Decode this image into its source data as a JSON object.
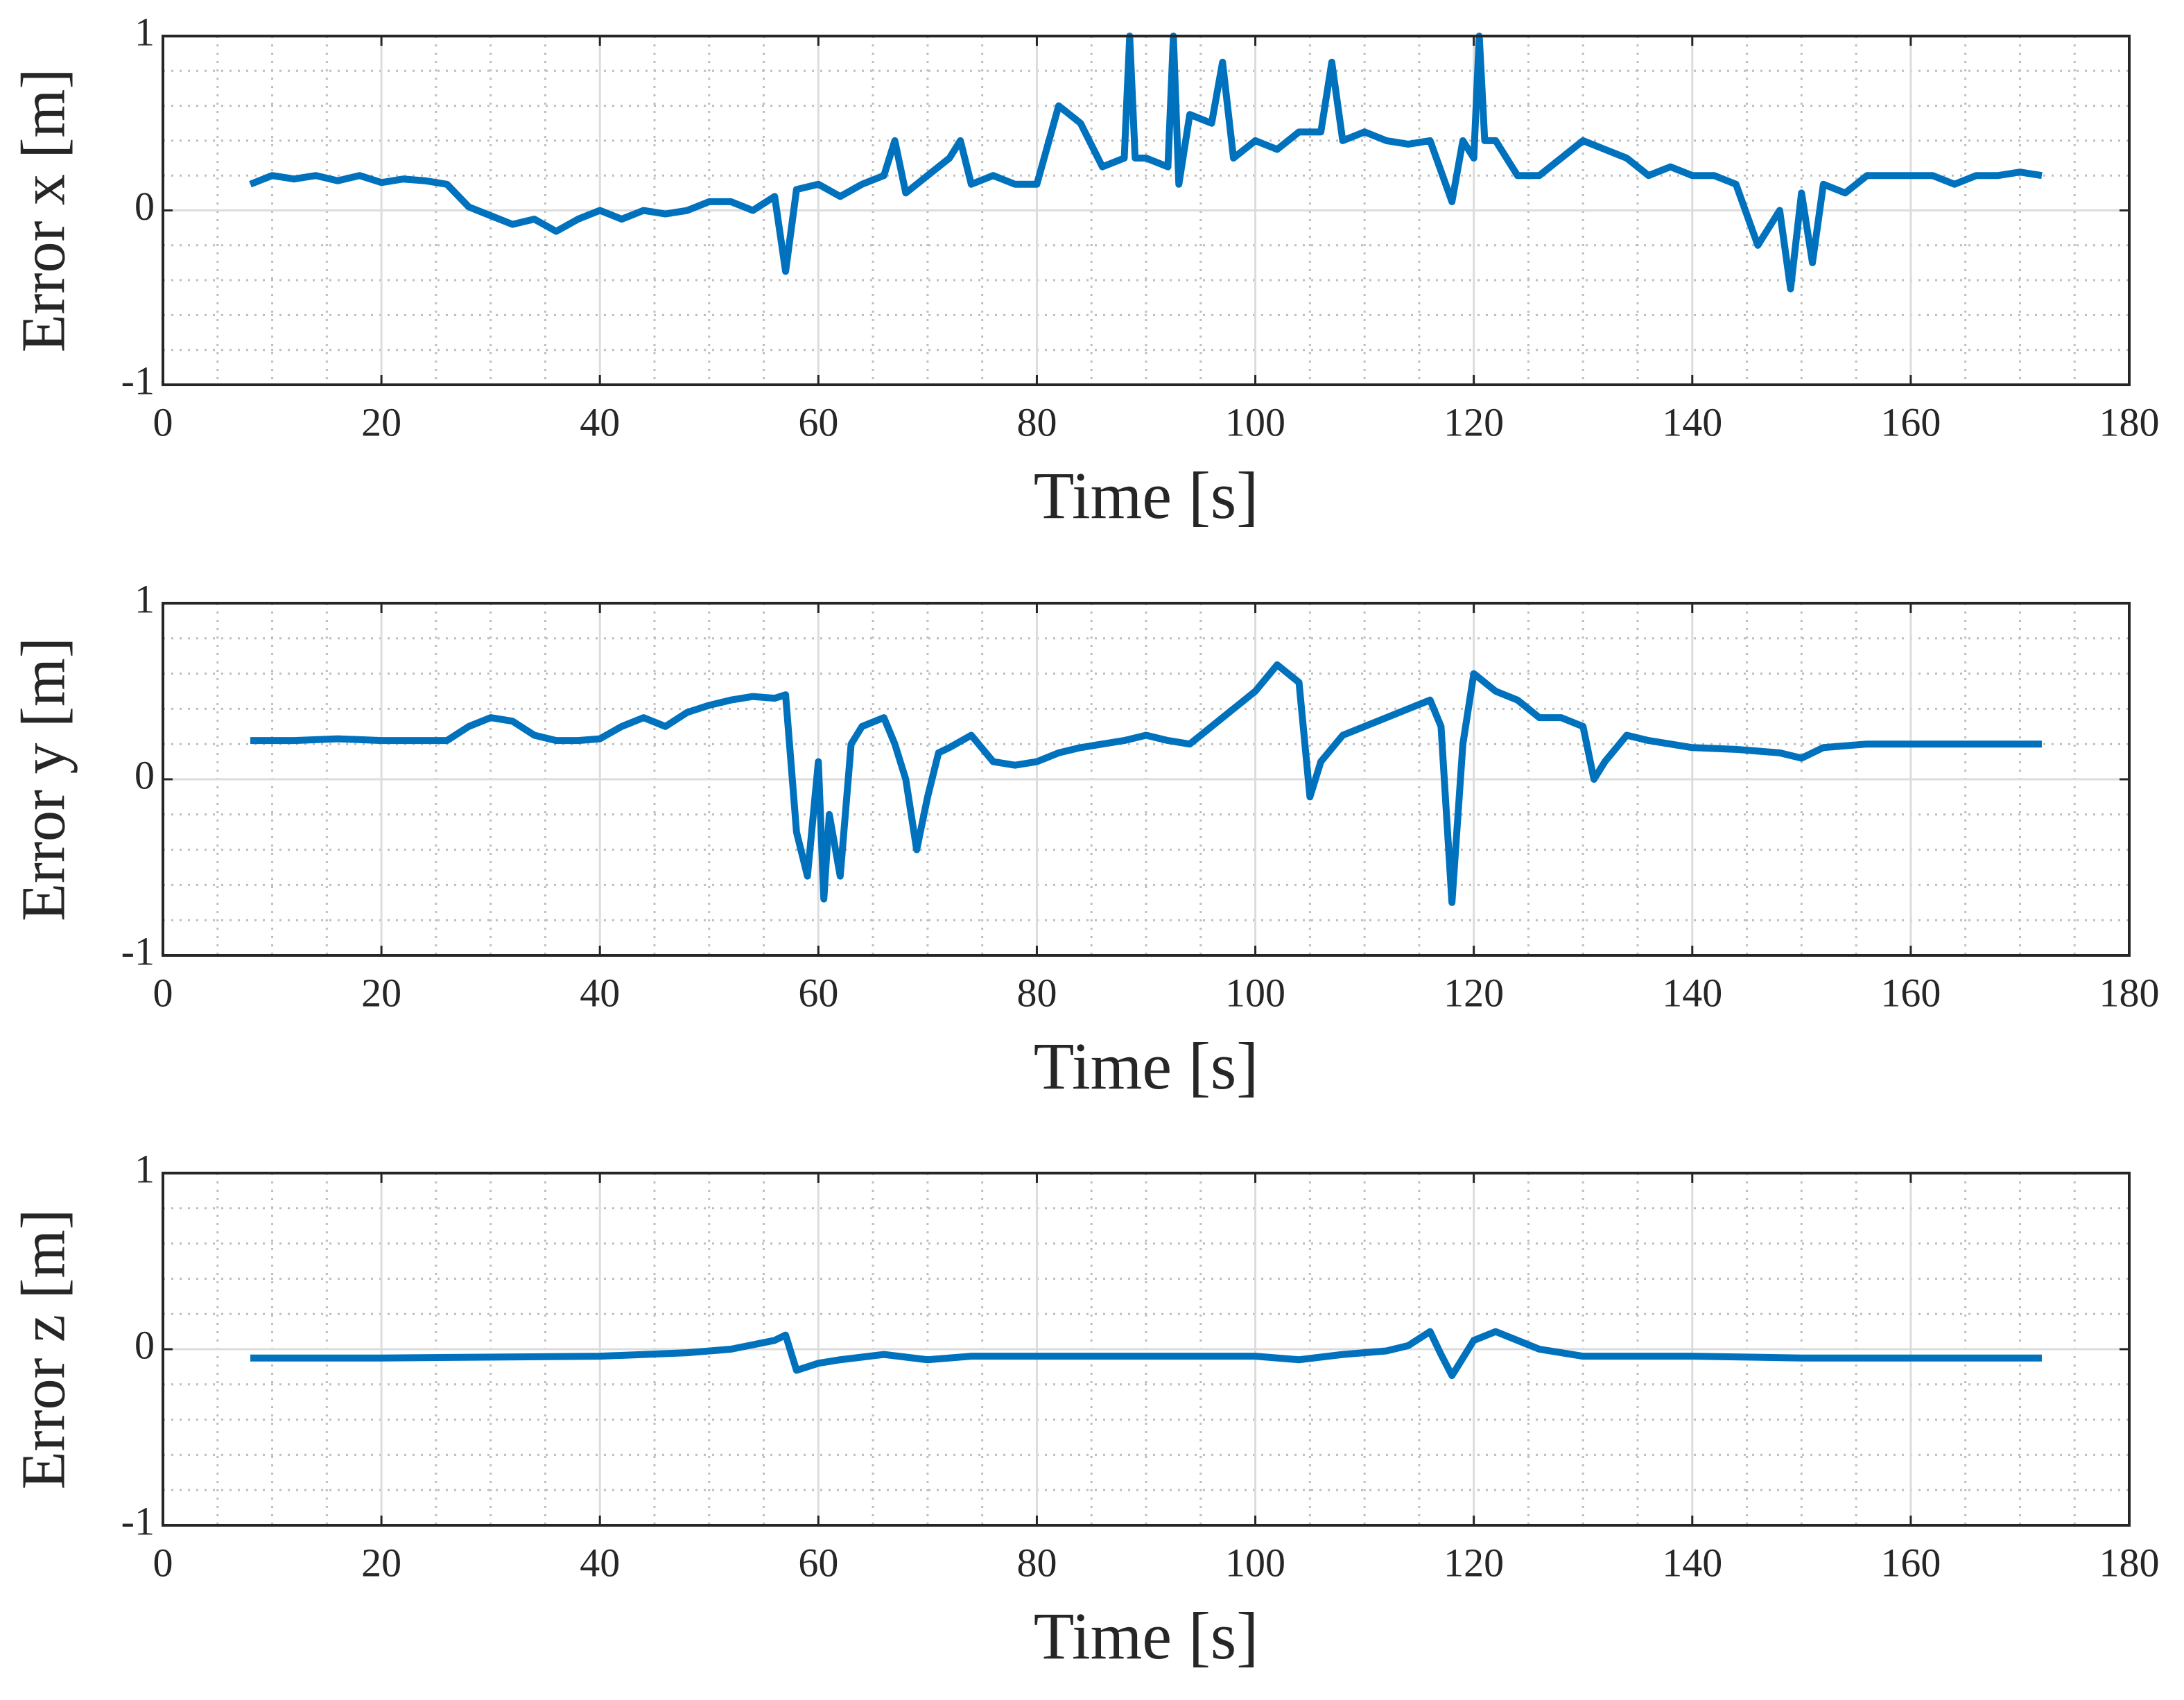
{
  "chart_data": [
    {
      "type": "line",
      "xlabel": "Time [s]",
      "ylabel": "Error x [m]",
      "xlim": [
        0,
        180
      ],
      "ylim": [
        -1,
        1
      ],
      "xticks": [
        0,
        20,
        40,
        60,
        80,
        100,
        120,
        140,
        160,
        180
      ],
      "yticks": [
        -1,
        0,
        1
      ],
      "xminorticks": [
        5,
        10,
        15,
        25,
        30,
        35,
        45,
        50,
        55,
        65,
        70,
        75,
        85,
        90,
        95,
        105,
        110,
        115,
        125,
        130,
        135,
        145,
        150,
        155,
        165,
        170,
        175
      ],
      "yminorticks": [
        -0.8,
        -0.6,
        -0.4,
        -0.2,
        0.2,
        0.4,
        0.6,
        0.8
      ],
      "grid": true,
      "x": [
        8,
        10,
        12,
        14,
        16,
        18,
        20,
        22,
        24,
        26,
        28,
        30,
        32,
        34,
        36,
        38,
        40,
        42,
        44,
        46,
        48,
        50,
        52,
        54,
        56,
        57,
        58,
        60,
        62,
        64,
        66,
        67,
        68,
        70,
        72,
        73,
        74,
        76,
        78,
        80,
        82,
        84,
        86,
        88,
        88.5,
        89,
        90,
        92,
        92.5,
        93,
        94,
        96,
        97,
        98,
        100,
        102,
        104,
        106,
        107,
        108,
        110,
        112,
        114,
        116,
        118,
        119,
        120,
        120.5,
        121,
        122,
        124,
        126,
        128,
        130,
        132,
        134,
        136,
        138,
        140,
        142,
        144,
        146,
        148,
        149,
        150,
        151,
        152,
        154,
        156,
        158,
        160,
        162,
        164,
        166,
        168,
        170,
        172
      ],
      "series": [
        {
          "color": "#0072bd",
          "values": [
            0.15,
            0.2,
            0.18,
            0.2,
            0.17,
            0.2,
            0.16,
            0.18,
            0.17,
            0.15,
            0.02,
            -0.03,
            -0.08,
            -0.05,
            -0.12,
            -0.05,
            0.0,
            -0.05,
            0.0,
            -0.02,
            0.0,
            0.05,
            0.05,
            0.0,
            0.08,
            -0.35,
            0.12,
            0.15,
            0.08,
            0.15,
            0.2,
            0.4,
            0.1,
            0.2,
            0.3,
            0.4,
            0.15,
            0.2,
            0.15,
            0.15,
            0.6,
            0.5,
            0.25,
            0.3,
            1.0,
            0.3,
            0.3,
            0.25,
            1.0,
            0.15,
            0.55,
            0.5,
            0.85,
            0.3,
            0.4,
            0.35,
            0.45,
            0.45,
            0.85,
            0.4,
            0.45,
            0.4,
            0.38,
            0.4,
            0.05,
            0.4,
            0.3,
            1.0,
            0.4,
            0.4,
            0.2,
            0.2,
            0.3,
            0.4,
            0.35,
            0.3,
            0.2,
            0.25,
            0.2,
            0.2,
            0.15,
            -0.2,
            0.0,
            -0.45,
            0.1,
            -0.3,
            0.15,
            0.1,
            0.2,
            0.2,
            0.2,
            0.2,
            0.15,
            0.2,
            0.2,
            0.22,
            0.2
          ]
        }
      ]
    },
    {
      "type": "line",
      "xlabel": "Time [s]",
      "ylabel": "Error y [m]",
      "xlim": [
        0,
        180
      ],
      "ylim": [
        -1,
        1
      ],
      "xticks": [
        0,
        20,
        40,
        60,
        80,
        100,
        120,
        140,
        160,
        180
      ],
      "yticks": [
        -1,
        0,
        1
      ],
      "xminorticks": [
        5,
        10,
        15,
        25,
        30,
        35,
        45,
        50,
        55,
        65,
        70,
        75,
        85,
        90,
        95,
        105,
        110,
        115,
        125,
        130,
        135,
        145,
        150,
        155,
        165,
        170,
        175
      ],
      "yminorticks": [
        -0.8,
        -0.6,
        -0.4,
        -0.2,
        0.2,
        0.4,
        0.6,
        0.8
      ],
      "grid": true,
      "x": [
        8,
        12,
        16,
        20,
        24,
        26,
        28,
        30,
        32,
        34,
        36,
        38,
        40,
        42,
        44,
        46,
        48,
        50,
        52,
        54,
        56,
        57,
        58,
        59,
        60,
        60.5,
        61,
        62,
        63,
        64,
        66,
        67,
        68,
        69,
        70,
        71,
        72,
        74,
        76,
        78,
        80,
        82,
        84,
        86,
        88,
        90,
        92,
        94,
        96,
        98,
        100,
        102,
        104,
        105,
        106,
        108,
        110,
        112,
        114,
        116,
        117,
        118,
        119,
        120,
        122,
        124,
        126,
        128,
        130,
        131,
        132,
        134,
        136,
        138,
        140,
        144,
        148,
        150,
        152,
        156,
        160,
        164,
        168,
        172
      ],
      "series": [
        {
          "color": "#0072bd",
          "values": [
            0.22,
            0.22,
            0.23,
            0.22,
            0.22,
            0.22,
            0.3,
            0.35,
            0.33,
            0.25,
            0.22,
            0.22,
            0.23,
            0.3,
            0.35,
            0.3,
            0.38,
            0.42,
            0.45,
            0.47,
            0.46,
            0.48,
            -0.3,
            -0.55,
            0.1,
            -0.68,
            -0.2,
            -0.55,
            0.2,
            0.3,
            0.35,
            0.2,
            0.0,
            -0.4,
            -0.1,
            0.15,
            0.18,
            0.25,
            0.1,
            0.08,
            0.1,
            0.15,
            0.18,
            0.2,
            0.22,
            0.25,
            0.22,
            0.2,
            0.3,
            0.4,
            0.5,
            0.65,
            0.55,
            -0.1,
            0.1,
            0.25,
            0.3,
            0.35,
            0.4,
            0.45,
            0.3,
            -0.7,
            0.2,
            0.6,
            0.5,
            0.45,
            0.35,
            0.35,
            0.3,
            0.0,
            0.1,
            0.25,
            0.22,
            0.2,
            0.18,
            0.17,
            0.15,
            0.12,
            0.18,
            0.2,
            0.2,
            0.2,
            0.2,
            0.2
          ]
        }
      ]
    },
    {
      "type": "line",
      "xlabel": "Time [s]",
      "ylabel": "Error z [m]",
      "xlim": [
        0,
        180
      ],
      "ylim": [
        -1,
        1
      ],
      "xticks": [
        0,
        20,
        40,
        60,
        80,
        100,
        120,
        140,
        160,
        180
      ],
      "yticks": [
        -1,
        0,
        1
      ],
      "xminorticks": [
        5,
        10,
        15,
        25,
        30,
        35,
        45,
        50,
        55,
        65,
        70,
        75,
        85,
        90,
        95,
        105,
        110,
        115,
        125,
        130,
        135,
        145,
        150,
        155,
        165,
        170,
        175
      ],
      "yminorticks": [
        -0.8,
        -0.6,
        -0.4,
        -0.2,
        0.2,
        0.4,
        0.6,
        0.8
      ],
      "grid": true,
      "x": [
        8,
        20,
        40,
        48,
        52,
        56,
        57,
        58,
        60,
        62,
        66,
        70,
        74,
        80,
        90,
        100,
        104,
        108,
        112,
        114,
        116,
        117,
        118,
        119,
        120,
        122,
        124,
        126,
        128,
        130,
        140,
        150,
        160,
        172
      ],
      "series": [
        {
          "color": "#0072bd",
          "values": [
            -0.05,
            -0.05,
            -0.04,
            -0.02,
            0.0,
            0.05,
            0.08,
            -0.12,
            -0.08,
            -0.06,
            -0.03,
            -0.06,
            -0.04,
            -0.04,
            -0.04,
            -0.04,
            -0.06,
            -0.03,
            -0.01,
            0.02,
            0.1,
            -0.03,
            -0.15,
            -0.05,
            0.05,
            0.1,
            0.05,
            0.0,
            -0.02,
            -0.04,
            -0.04,
            -0.05,
            -0.05,
            -0.05
          ]
        }
      ]
    }
  ]
}
